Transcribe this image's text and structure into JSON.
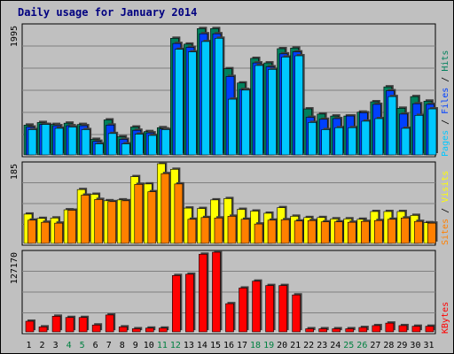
{
  "title": "Daily usage for January 2014",
  "colors": {
    "hits": "#00805c",
    "files": "#0040ff",
    "pages": "#00c8ff",
    "visits": "#ffff00",
    "sites": "#ff8000",
    "kbytes": "#ff0000",
    "weekend_label": "#008040",
    "weekday_label": "#000000",
    "panel_bg": "#c0c0c0",
    "grid": "#808080"
  },
  "chart_data": [
    {
      "type": "bar",
      "panel": "traffic",
      "max_label": "1995",
      "ylim": [
        0,
        1995
      ],
      "legend": [
        "Pages",
        "/",
        "Files",
        "/",
        "Hits"
      ],
      "categories": [
        "1",
        "2",
        "3",
        "4",
        "5",
        "6",
        "7",
        "8",
        "9",
        "10",
        "11",
        "12",
        "13",
        "14",
        "15",
        "16",
        "17",
        "18",
        "19",
        "20",
        "21",
        "22",
        "23",
        "24",
        "25",
        "26",
        "27",
        "28",
        "29",
        "30",
        "31"
      ],
      "series": [
        {
          "name": "Hits",
          "values": [
            460,
            500,
            470,
            490,
            470,
            240,
            540,
            280,
            430,
            360,
            420,
            1800,
            1710,
            1950,
            1950,
            1330,
            1110,
            1490,
            1420,
            1640,
            1650,
            710,
            630,
            600,
            600,
            660,
            820,
            1050,
            720,
            900,
            830
          ]
        },
        {
          "name": "Files",
          "values": [
            430,
            470,
            450,
            450,
            450,
            210,
            460,
            240,
            380,
            340,
            400,
            1720,
            1660,
            1870,
            1870,
            1210,
            1010,
            1420,
            1360,
            1560,
            1590,
            580,
            550,
            560,
            600,
            650,
            780,
            990,
            630,
            790,
            780
          ]
        },
        {
          "name": "Pages",
          "values": [
            390,
            470,
            410,
            430,
            390,
            170,
            330,
            170,
            320,
            300,
            390,
            1630,
            1590,
            1750,
            1800,
            860,
            1000,
            1380,
            1320,
            1510,
            1530,
            500,
            390,
            420,
            420,
            520,
            560,
            900,
            410,
            610,
            710
          ]
        }
      ]
    },
    {
      "type": "bar",
      "panel": "visitors",
      "max_label": "185",
      "ylim": [
        0,
        185
      ],
      "legend": [
        "Sites",
        "/",
        "Visits"
      ],
      "categories": [
        "1",
        "2",
        "3",
        "4",
        "5",
        "6",
        "7",
        "8",
        "9",
        "10",
        "11",
        "12",
        "13",
        "14",
        "15",
        "16",
        "17",
        "18",
        "19",
        "20",
        "21",
        "22",
        "23",
        "24",
        "25",
        "26",
        "27",
        "28",
        "29",
        "30",
        "31"
      ],
      "series": [
        {
          "name": "Visits",
          "values": [
            68,
            58,
            59,
            78,
            125,
            114,
            99,
            101,
            155,
            138,
            185,
            172,
            82,
            81,
            101,
            104,
            79,
            75,
            70,
            83,
            63,
            60,
            60,
            57,
            57,
            56,
            74,
            74,
            74,
            65,
            48
          ]
        },
        {
          "name": "Sites",
          "values": [
            54,
            49,
            47,
            77,
            112,
            102,
            97,
            99,
            137,
            120,
            162,
            138,
            56,
            60,
            59,
            63,
            56,
            45,
            54,
            55,
            52,
            53,
            50,
            50,
            49,
            51,
            53,
            56,
            59,
            51,
            47
          ]
        }
      ]
    },
    {
      "type": "bar",
      "panel": "kbytes",
      "max_label": "127170",
      "ylim": [
        0,
        127170
      ],
      "legend": [
        "KBytes"
      ],
      "categories": [
        "1",
        "2",
        "3",
        "4",
        "5",
        "6",
        "7",
        "8",
        "9",
        "10",
        "11",
        "12",
        "13",
        "14",
        "15",
        "16",
        "17",
        "18",
        "19",
        "20",
        "21",
        "22",
        "23",
        "24",
        "25",
        "26",
        "27",
        "28",
        "29",
        "30",
        "31"
      ],
      "series": [
        {
          "name": "KBytes",
          "values": [
            17000,
            8000,
            25000,
            23000,
            23000,
            11000,
            27000,
            8000,
            5000,
            6000,
            6000,
            90000,
            92000,
            124000,
            127170,
            45000,
            70000,
            81000,
            74000,
            74000,
            59000,
            5000,
            5000,
            5000,
            5000,
            7000,
            10000,
            14000,
            10000,
            9000,
            9000
          ]
        }
      ]
    }
  ],
  "weekend_days": [
    "4",
    "5",
    "11",
    "12",
    "18",
    "19",
    "25",
    "26"
  ]
}
